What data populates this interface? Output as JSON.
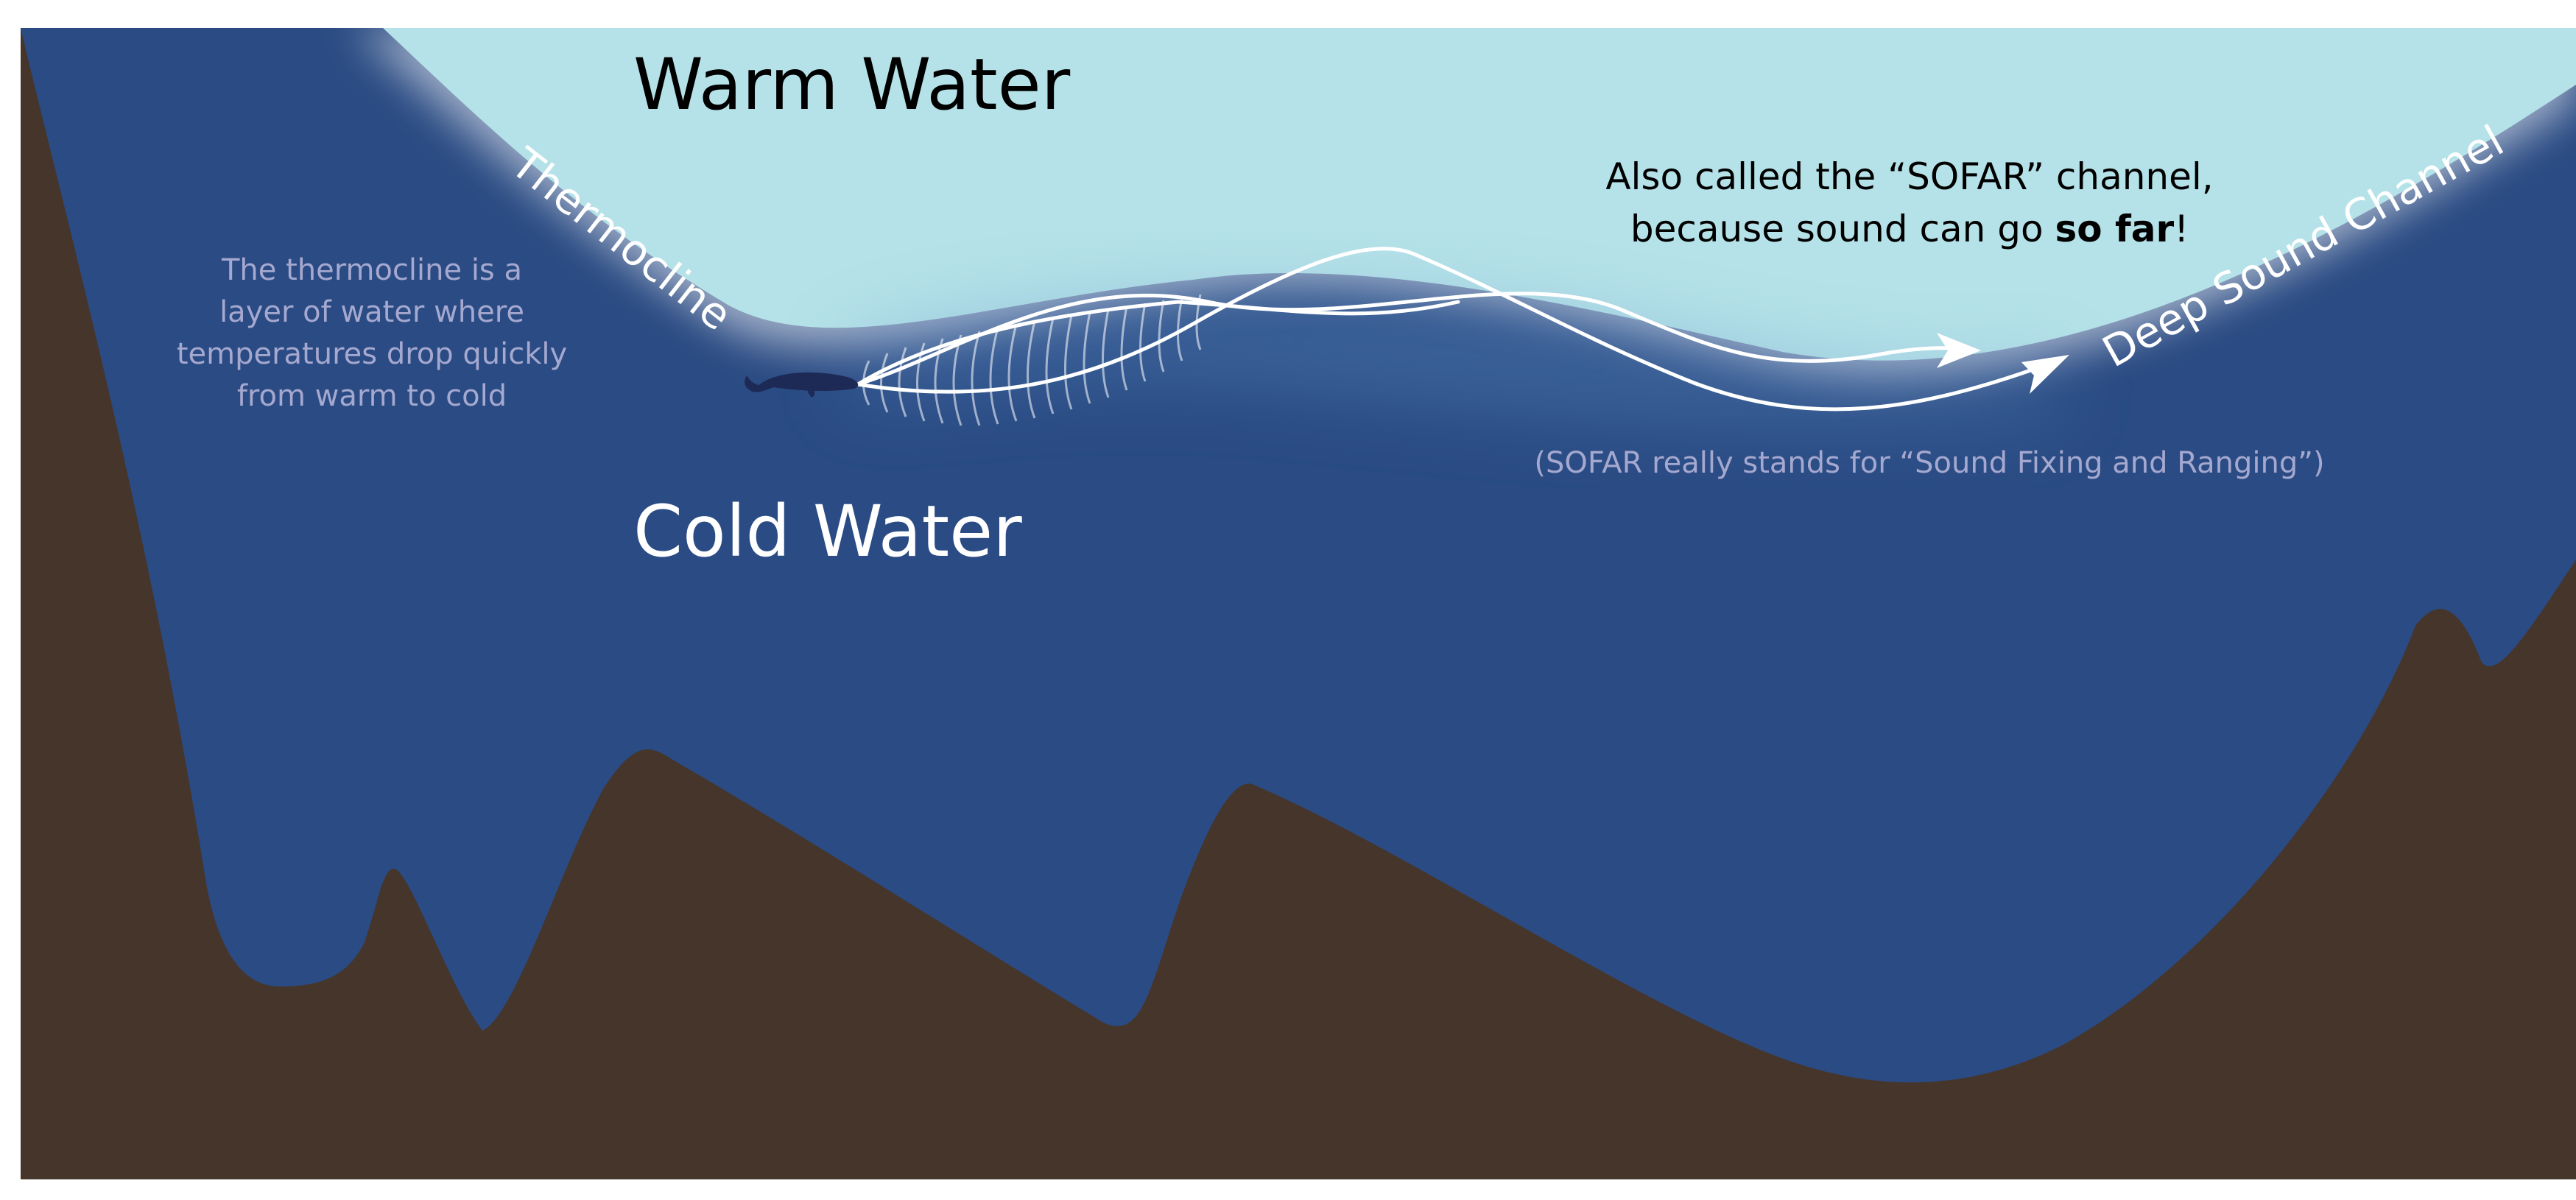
{
  "labels": {
    "warm_water": "Warm Water",
    "cold_water": "Cold Water",
    "thermocline": "Thermocline",
    "deep_sound_channel": "Deep Sound Channel"
  },
  "thermocline_note": {
    "lines": [
      "The thermocline is a",
      "layer of water where",
      "temperatures drop quickly",
      "from warm to cold"
    ]
  },
  "sofar_note": {
    "line1": "Also called the “SOFAR” channel,",
    "line2_prefix": "because sound can go ",
    "line2_bold": "so far",
    "line2_suffix": "!"
  },
  "sofar_footnote": "(SOFAR really stands for “Sound Fixing and Ranging”)",
  "colors": {
    "warm_water": "#b5e2e8",
    "cold_water": "#2a4b83",
    "seafloor": "#46352b",
    "sound_path": "#ffffff",
    "note_text": "#a5a8cf",
    "dark_text": "#000000",
    "whale": "#1c2a55"
  },
  "icons": {
    "whale": "whale-icon",
    "arrow": "arrowhead-icon"
  }
}
